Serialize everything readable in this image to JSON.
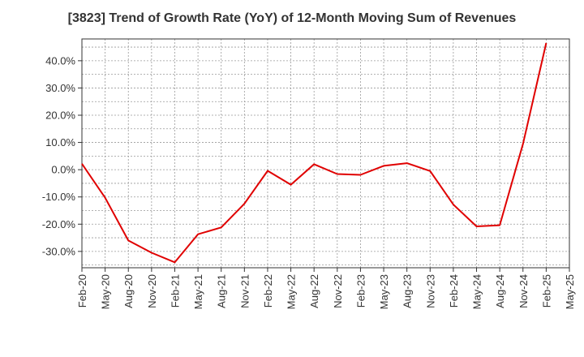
{
  "chart_data": {
    "type": "line",
    "title": "[3823]  Trend of Growth Rate (YoY) of 12-Month Moving Sum of Revenues",
    "xlabel": "",
    "ylabel": "",
    "x_tick_labels": [
      "Feb-20",
      "May-20",
      "Aug-20",
      "Nov-20",
      "Feb-21",
      "May-21",
      "Aug-21",
      "Nov-21",
      "Feb-22",
      "May-22",
      "Aug-22",
      "Nov-22",
      "Feb-23",
      "May-23",
      "Aug-23",
      "Nov-23",
      "Feb-24",
      "May-24",
      "Aug-24",
      "Nov-24",
      "Feb-25",
      "May-25"
    ],
    "y_tick_values": [
      -30,
      -20,
      -10,
      0,
      10,
      20,
      30,
      40
    ],
    "y_tick_labels": [
      "-30.0%",
      "-20.0%",
      "-10.0%",
      "0.0%",
      "10.0%",
      "20.0%",
      "30.0%",
      "40.0%"
    ],
    "ylim": [
      -36,
      48
    ],
    "grid": true,
    "series": [
      {
        "color": "#e00000",
        "values": [
          2.2,
          -10.3,
          -26.0,
          -30.5,
          -34.0,
          -23.7,
          -21.2,
          -12.5,
          -0.4,
          -5.5,
          2.0,
          -1.6,
          -1.9,
          1.4,
          2.4,
          -0.5,
          -12.8,
          -20.8,
          -20.4,
          9.5,
          46.5
        ]
      }
    ]
  }
}
